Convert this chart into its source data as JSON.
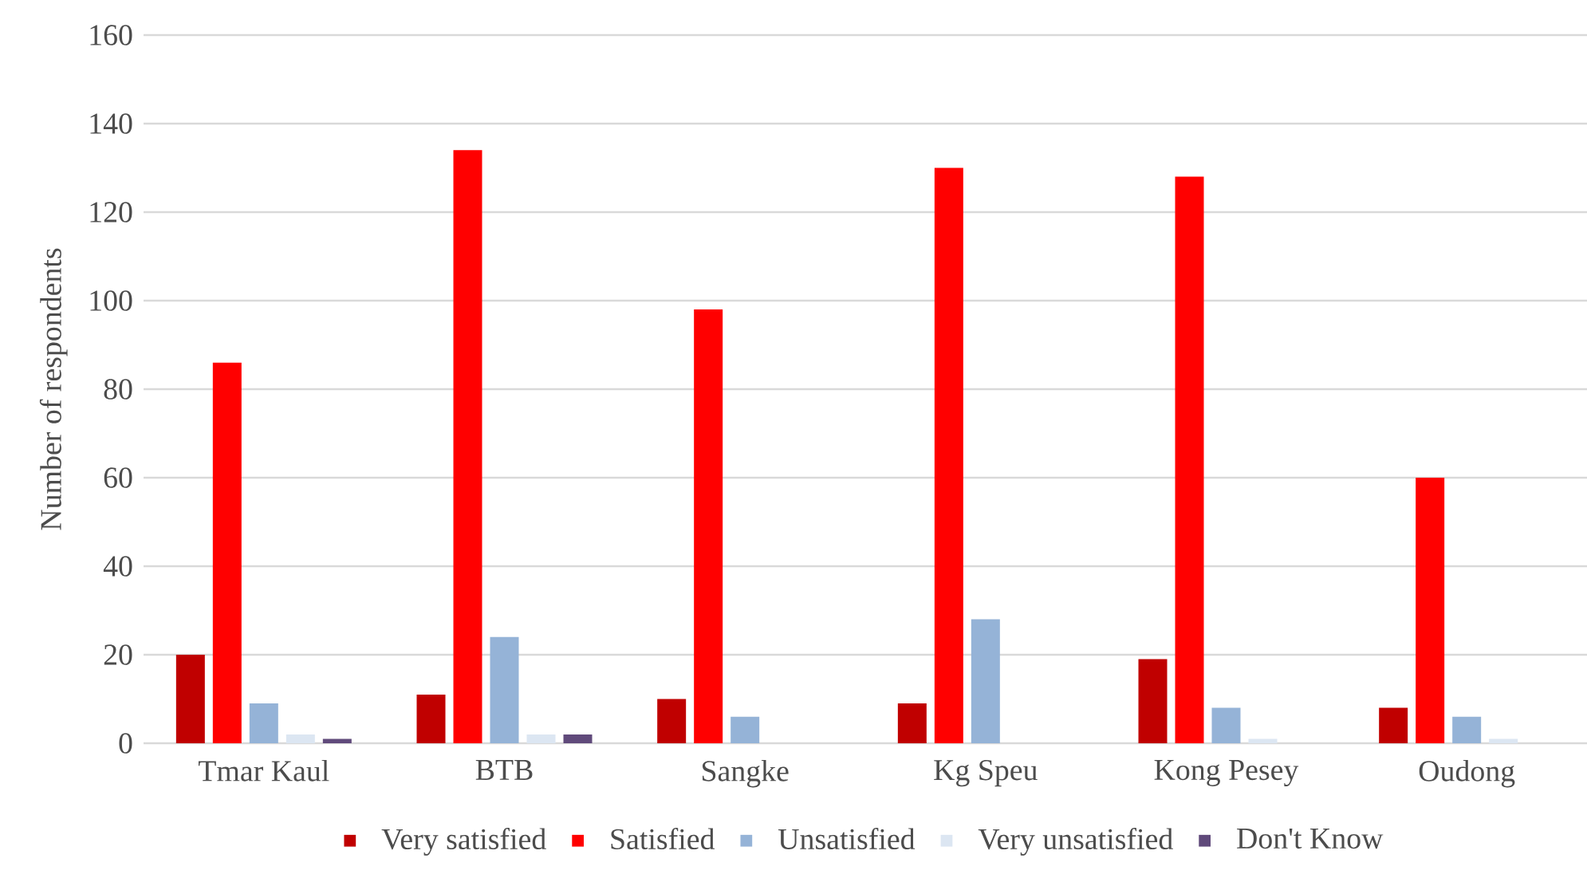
{
  "chart_data": {
    "type": "bar",
    "ylabel": "Number  of respondents",
    "categories": [
      "Tmar Kaul",
      "BTB",
      "Sangke",
      "Kg Speu",
      "Kong Pesey",
      "Oudong"
    ],
    "series": [
      {
        "name": "Very satisfied",
        "color": "#c00000",
        "values": [
          20,
          11,
          10,
          9,
          19,
          8
        ]
      },
      {
        "name": "Satisfied",
        "color": "#ff0000",
        "values": [
          86,
          134,
          98,
          130,
          128,
          60
        ]
      },
      {
        "name": "Unsatisfied",
        "color": "#95b3d7",
        "values": [
          9,
          24,
          6,
          28,
          8,
          6
        ]
      },
      {
        "name": "Very unsatisfied",
        "color": "#dce6f2",
        "values": [
          2,
          2,
          0,
          0,
          1,
          1
        ]
      },
      {
        "name": "Don't Know",
        "color": "#604a7b",
        "values": [
          1,
          2,
          0,
          0,
          0,
          0
        ]
      }
    ],
    "ylim": [
      0,
      160
    ],
    "yticks": [
      0,
      20,
      40,
      60,
      80,
      100,
      120,
      140,
      160
    ],
    "grid": "y",
    "legend": "bottom"
  }
}
